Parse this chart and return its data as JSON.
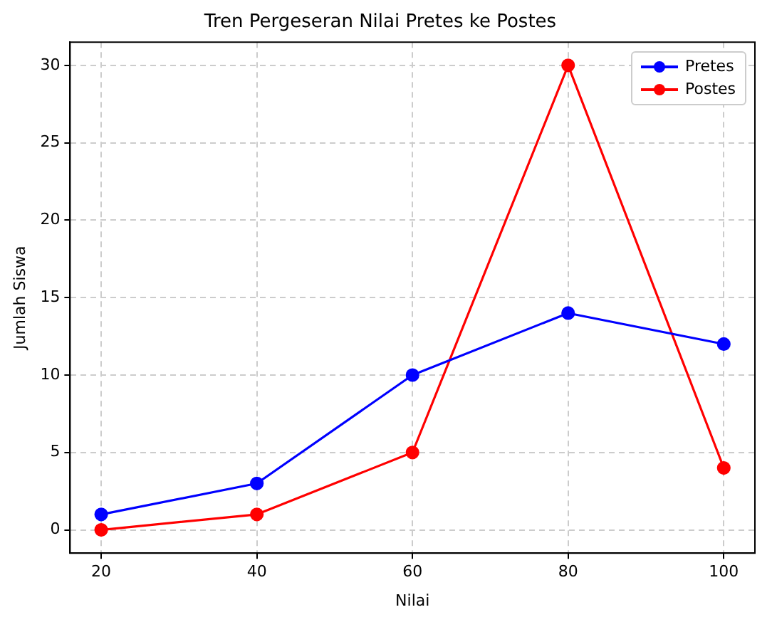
{
  "chart_data": {
    "type": "line",
    "title": "Tren Pergeseran Nilai Pretes ke Postes",
    "xlabel": "Nilai",
    "ylabel": "Jumlah Siswa",
    "x": [
      20,
      40,
      60,
      80,
      100
    ],
    "series": [
      {
        "name": "Pretes",
        "color": "#0000ff",
        "values": [
          1,
          3,
          10,
          14,
          12
        ]
      },
      {
        "name": "Postes",
        "color": "#ff0000",
        "values": [
          0,
          1,
          5,
          30,
          4
        ]
      }
    ],
    "xlim": [
      16,
      104
    ],
    "ylim": [
      -1.5,
      31.5
    ],
    "xticks": [
      20,
      40,
      60,
      80,
      100
    ],
    "yticks": [
      0,
      5,
      10,
      15,
      20,
      25,
      30
    ],
    "grid": true,
    "legend": "top right",
    "marker": "circle",
    "line_style": "solid"
  }
}
